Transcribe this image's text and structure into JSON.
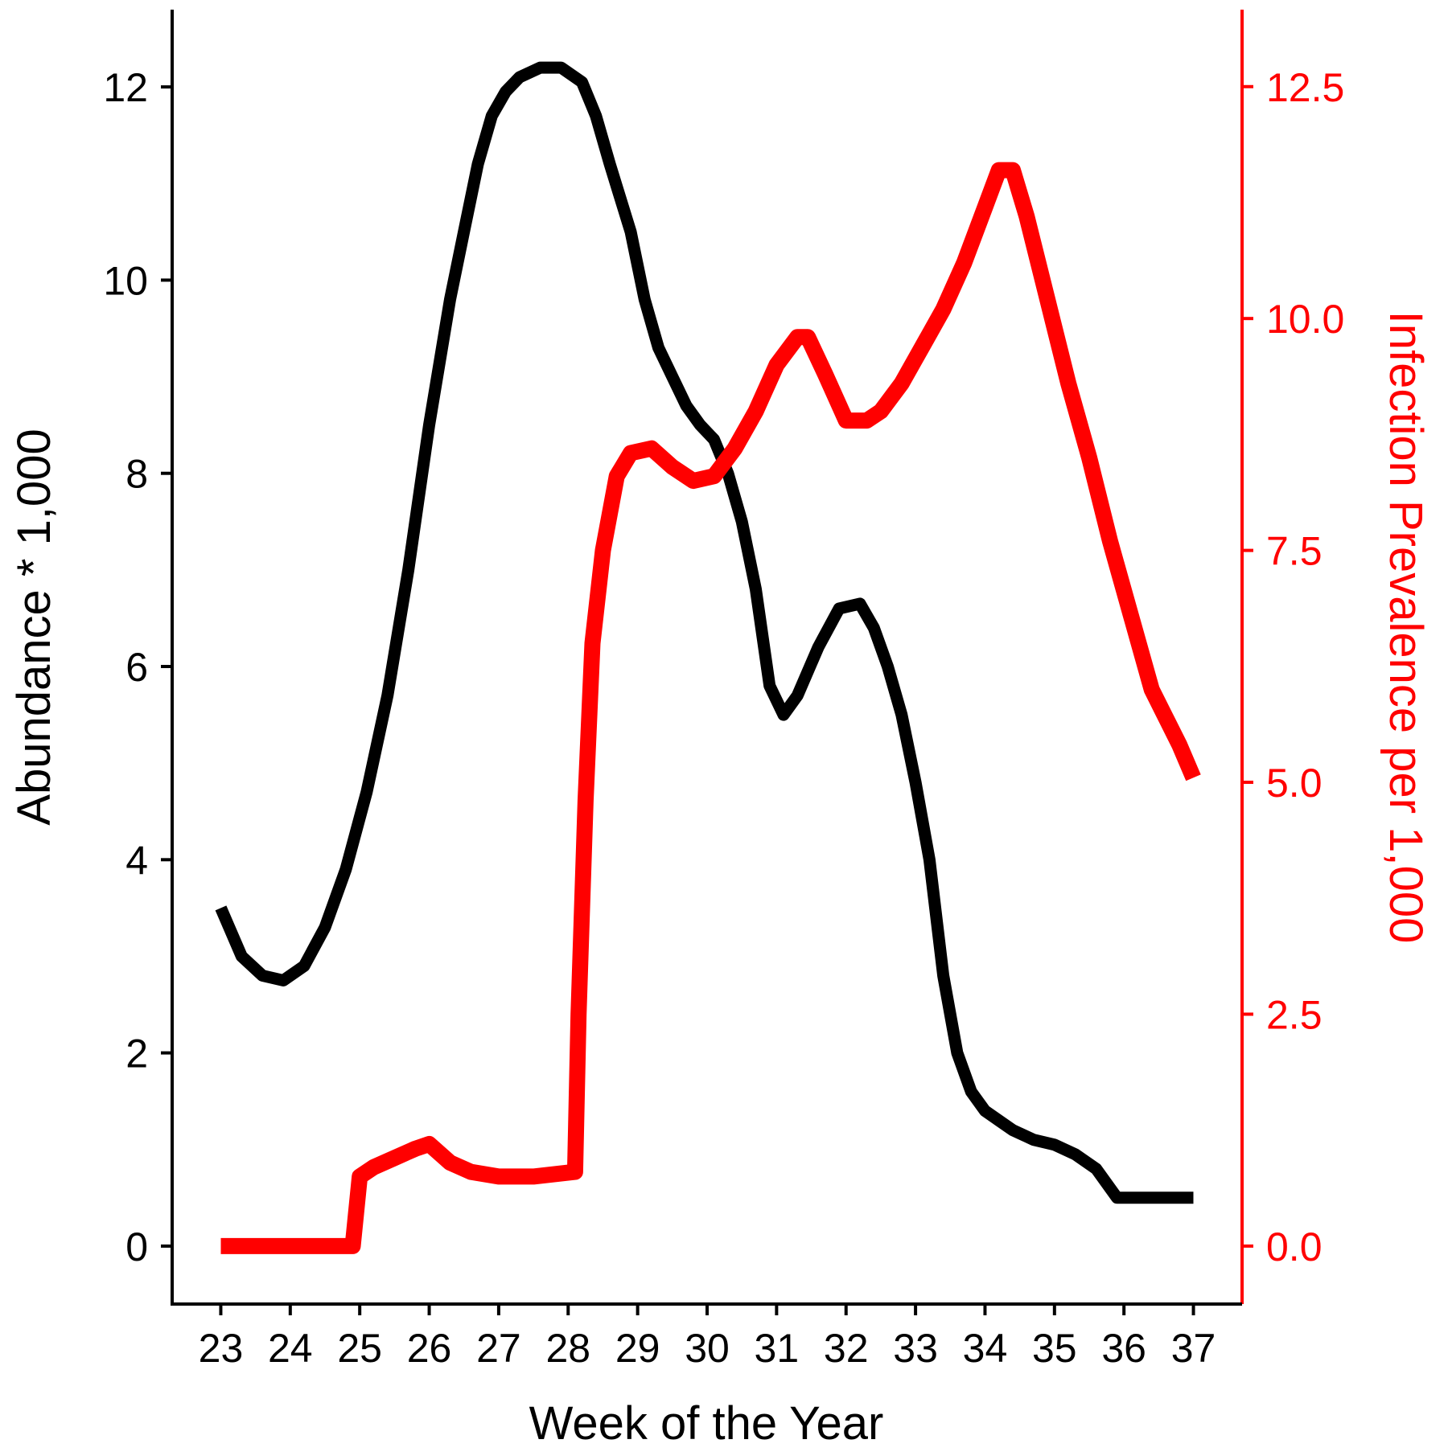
{
  "chart_data": {
    "type": "line",
    "xlabel": "Week of the Year",
    "ylabel_left": "Abundance * 1,000",
    "ylabel_right": "Infection Prevalence per 1,000",
    "x_ticks": [
      23,
      24,
      25,
      26,
      27,
      28,
      29,
      30,
      31,
      32,
      33,
      34,
      35,
      36,
      37
    ],
    "y_left_ticks": [
      0,
      2,
      4,
      6,
      8,
      10,
      12
    ],
    "y_left_tick_labels": [
      "0",
      "2",
      "4",
      "6",
      "8",
      "10",
      "12"
    ],
    "y_right_ticks": [
      0.0,
      2.5,
      5.0,
      7.5,
      10.0,
      12.5
    ],
    "y_right_tick_labels": [
      "0.0",
      "2.5",
      "5.0",
      "7.5",
      "10.0",
      "12.5"
    ],
    "xlim": [
      22.3,
      37.7
    ],
    "ylim_left": [
      -0.6,
      12.8
    ],
    "ylim_right": [
      -0.625,
      13.33
    ],
    "grid": false,
    "colors": {
      "abundance": "#000000",
      "prevalence": "#ff0000",
      "axis_right": "#ff0000",
      "axis_left": "#000000"
    },
    "series": [
      {
        "axis": "left",
        "color": "#000000",
        "x": [
          23.0,
          23.3,
          23.6,
          23.9,
          24.2,
          24.5,
          24.8,
          25.1,
          25.4,
          25.7,
          26.0,
          26.3,
          26.5,
          26.7,
          26.9,
          27.1,
          27.3,
          27.6,
          27.9,
          28.2,
          28.4,
          28.6,
          28.9,
          29.1,
          29.3,
          29.5,
          29.7,
          29.9,
          30.1,
          30.3,
          30.5,
          30.7,
          30.9,
          31.1,
          31.3,
          31.6,
          31.9,
          32.2,
          32.4,
          32.6,
          32.8,
          33.0,
          33.2,
          33.4,
          33.6,
          33.8,
          34.0,
          34.2,
          34.4,
          34.7,
          35.0,
          35.3,
          35.6,
          35.9,
          36.2,
          36.5,
          36.7,
          37.0
        ],
        "y": [
          3.5,
          3.0,
          2.8,
          2.75,
          2.9,
          3.3,
          3.9,
          4.7,
          5.7,
          7.0,
          8.5,
          9.8,
          10.5,
          11.2,
          11.7,
          11.95,
          12.1,
          12.2,
          12.2,
          12.05,
          11.7,
          11.2,
          10.5,
          9.8,
          9.3,
          9.0,
          8.7,
          8.5,
          8.35,
          8.0,
          7.5,
          6.8,
          5.8,
          5.5,
          5.7,
          6.2,
          6.6,
          6.65,
          6.4,
          6.0,
          5.5,
          4.8,
          4.0,
          2.8,
          2.0,
          1.6,
          1.4,
          1.3,
          1.2,
          1.1,
          1.05,
          0.95,
          0.8,
          0.5,
          0.5,
          0.5,
          0.5,
          0.5
        ]
      },
      {
        "axis": "right",
        "color": "#ff0000",
        "x": [
          23.0,
          24.0,
          24.9,
          25.0,
          25.2,
          25.5,
          25.8,
          26.0,
          26.3,
          26.6,
          27.0,
          27.5,
          28.1,
          28.15,
          28.25,
          28.35,
          28.5,
          28.7,
          28.9,
          29.2,
          29.5,
          29.8,
          30.1,
          30.4,
          30.7,
          31.0,
          31.3,
          31.45,
          31.7,
          32.0,
          32.3,
          32.5,
          32.8,
          33.1,
          33.4,
          33.7,
          34.0,
          34.2,
          34.4,
          34.6,
          34.9,
          35.2,
          35.5,
          35.8,
          36.1,
          36.4,
          36.6,
          36.8,
          37.0
        ],
        "y": [
          0.0,
          0.0,
          0.0,
          0.75,
          0.85,
          0.95,
          1.05,
          1.1,
          0.9,
          0.8,
          0.75,
          0.75,
          0.8,
          2.5,
          4.8,
          6.5,
          7.5,
          8.3,
          8.55,
          8.6,
          8.4,
          8.25,
          8.3,
          8.6,
          9.0,
          9.5,
          9.8,
          9.8,
          9.4,
          8.9,
          8.9,
          9.0,
          9.3,
          9.7,
          10.1,
          10.6,
          11.2,
          11.6,
          11.6,
          11.1,
          10.2,
          9.3,
          8.5,
          7.6,
          6.8,
          6.0,
          5.7,
          5.4,
          5.05
        ]
      }
    ]
  }
}
